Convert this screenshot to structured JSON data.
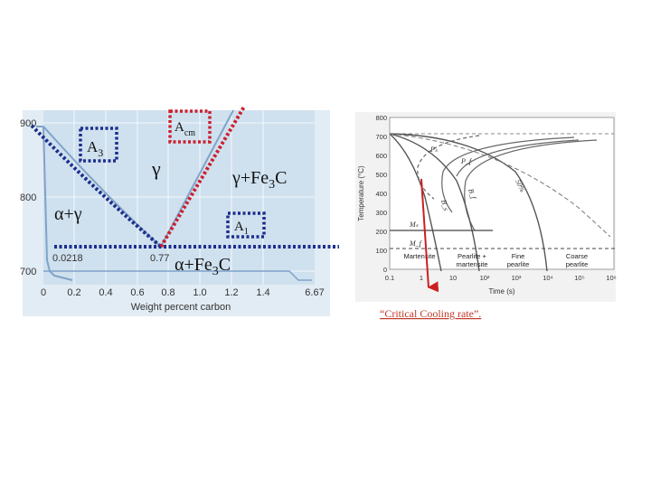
{
  "left_chart": {
    "xlabel": "Weight percent carbon",
    "x_ticks": [
      "0",
      "0.2",
      "0.4",
      "0.6",
      "0.8",
      "1.0",
      "1.2",
      "1.4",
      "6.67"
    ],
    "y_ticks": [
      "900",
      "800",
      "700"
    ],
    "annotations": {
      "eutectoid_c": "0.77",
      "max_ferrite_c": "0.0218"
    },
    "phase_labels": {
      "gamma": "γ",
      "alpha_gamma": "α+γ",
      "gamma_fe3c_main": "γ+Fe",
      "gamma_fe3c_sub": "3",
      "gamma_fe3c_end": "C",
      "alpha_fe3c_main": "α+Fe",
      "alpha_fe3c_sub": "3",
      "alpha_fe3c_end": "C"
    },
    "boxes": {
      "a3_main": "A",
      "a3_sub": "3",
      "acm_main": "A",
      "acm_sub": "cm",
      "a1_main": "A",
      "a1_sub": "1"
    },
    "colors": {
      "plot_bg": "#cfe0ee",
      "line": "#7fa3c8",
      "dotted_blue": "#1c2e8c",
      "dotted_red": "#cc1f2e"
    }
  },
  "right_chart": {
    "ylabel": "Temperature (°C)",
    "xlabel": "Time (s)",
    "y_ticks": [
      "800",
      "700",
      "600",
      "500",
      "400",
      "300",
      "200",
      "100",
      "0"
    ],
    "x_ticks": [
      "0.1",
      "1",
      "10",
      "10²",
      "10³",
      "10⁴",
      "10⁵",
      "10⁶"
    ],
    "curve_labels": [
      "Pₛ",
      "P_f",
      "50%",
      "B_s",
      "B_f",
      "Mₛ",
      "M_f"
    ],
    "region_labels": [
      "Martensite",
      "Pearlite +",
      "martensite",
      "Fine",
      "pearlite",
      "Coarse",
      "pearlite"
    ]
  },
  "caption": "“Critical Cooling rate”.",
  "colors": {
    "caption": "#c0392b",
    "arrow": "#cc1f1f"
  }
}
